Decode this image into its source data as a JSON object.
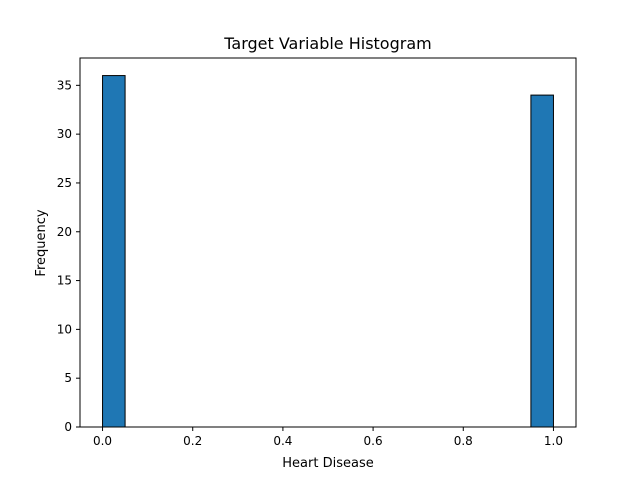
{
  "colors": {
    "bar_fill": "#1f77b4",
    "bar_edge": "#000000",
    "axes": "#000000",
    "background": "#ffffff"
  },
  "chart_data": {
    "type": "bar",
    "title": "Target Variable Histogram",
    "xlabel": "Heart Disease",
    "ylabel": "Frequency",
    "xlim": [
      -0.05,
      1.05
    ],
    "ylim": [
      0,
      37.8
    ],
    "xticks": [
      "0.0",
      "0.2",
      "0.4",
      "0.6",
      "0.8",
      "1.0"
    ],
    "yticks": [
      "0",
      "5",
      "10",
      "15",
      "20",
      "25",
      "30",
      "35"
    ],
    "bins": [
      {
        "x0": 0.0,
        "x1": 0.05,
        "count": 36
      },
      {
        "x0": 0.95,
        "x1": 1.0,
        "count": 34
      }
    ],
    "grid": false,
    "legend": false
  }
}
